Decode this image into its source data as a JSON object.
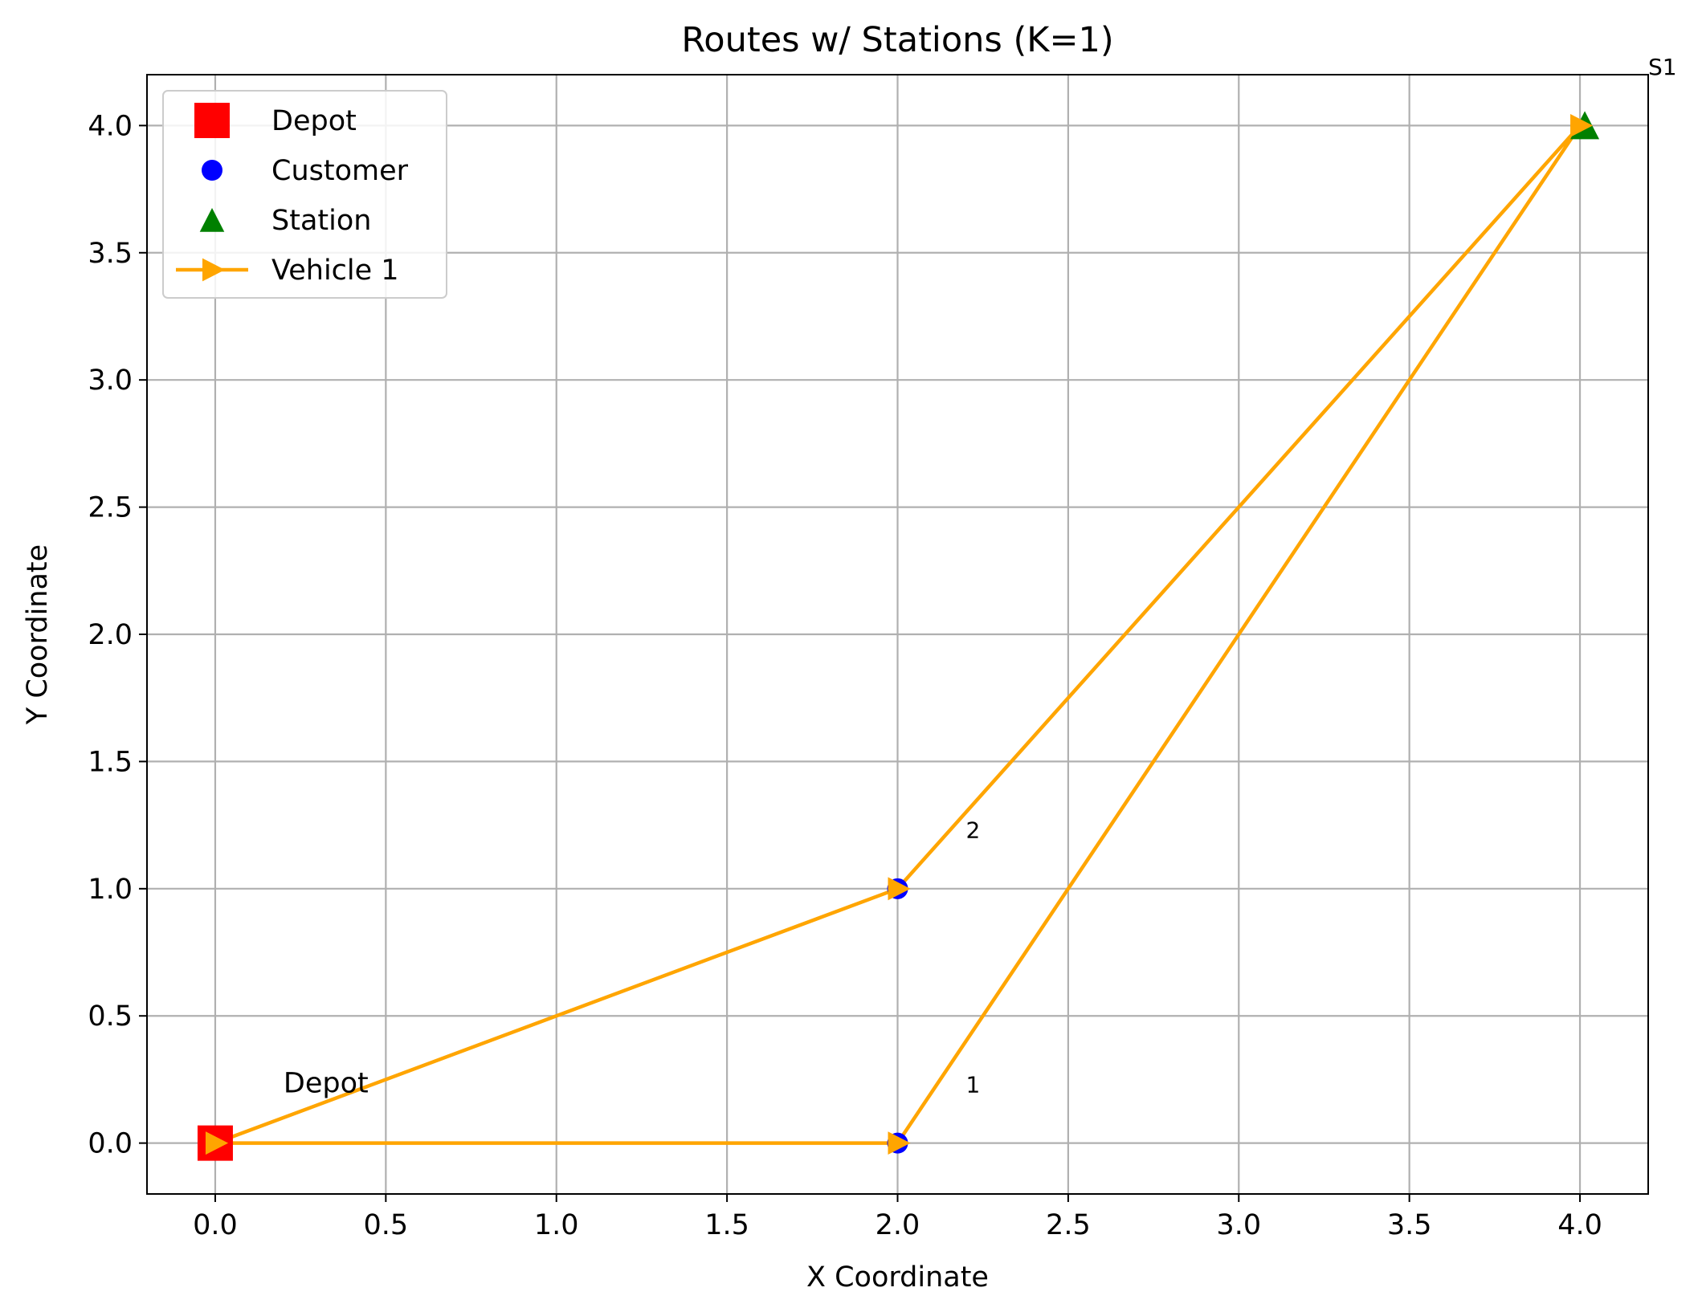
{
  "chart_data": {
    "type": "scatter",
    "title": "Routes w/ Stations (K=1)",
    "xlabel": "X Coordinate",
    "ylabel": "Y Coordinate",
    "xlim": [
      -0.2,
      4.2
    ],
    "ylim": [
      -0.2,
      4.2
    ],
    "xticks": [
      "0.0",
      "0.5",
      "1.0",
      "1.5",
      "2.0",
      "2.5",
      "3.0",
      "3.5",
      "4.0"
    ],
    "yticks": [
      "0.0",
      "0.5",
      "1.0",
      "1.5",
      "2.0",
      "2.5",
      "3.0",
      "3.5",
      "4.0"
    ],
    "grid": true,
    "legend_position": "top-left",
    "legend": [
      {
        "label": "Depot",
        "marker": "square",
        "color": "#ff0000"
      },
      {
        "label": "Customer",
        "marker": "circle",
        "color": "#0000ff"
      },
      {
        "label": "Station",
        "marker": "triangle",
        "color": "#008000"
      },
      {
        "label": "Vehicle 1",
        "marker": "line-triangle-right",
        "color": "#ffa500"
      }
    ],
    "depot": {
      "x": 0,
      "y": 0
    },
    "customers": [
      {
        "x": 2,
        "y": 0
      },
      {
        "x": 2,
        "y": 1
      }
    ],
    "stations": [
      {
        "x": 4,
        "y": 4
      }
    ],
    "series": [
      {
        "name": "Vehicle 1",
        "color": "#ffa500",
        "points": [
          {
            "x": 0,
            "y": 0
          },
          {
            "x": 2,
            "y": 0
          },
          {
            "x": 4,
            "y": 4
          },
          {
            "x": 2,
            "y": 1
          },
          {
            "x": 0,
            "y": 0
          }
        ]
      }
    ],
    "annotations": [
      {
        "text": "Depot",
        "x": 0.2,
        "y": 0.2
      },
      {
        "text": "1",
        "x": 2.2,
        "y": 0.2
      },
      {
        "text": "2",
        "x": 2.2,
        "y": 1.2
      },
      {
        "text": "S1",
        "x": 4.2,
        "y": 4.2
      }
    ]
  }
}
